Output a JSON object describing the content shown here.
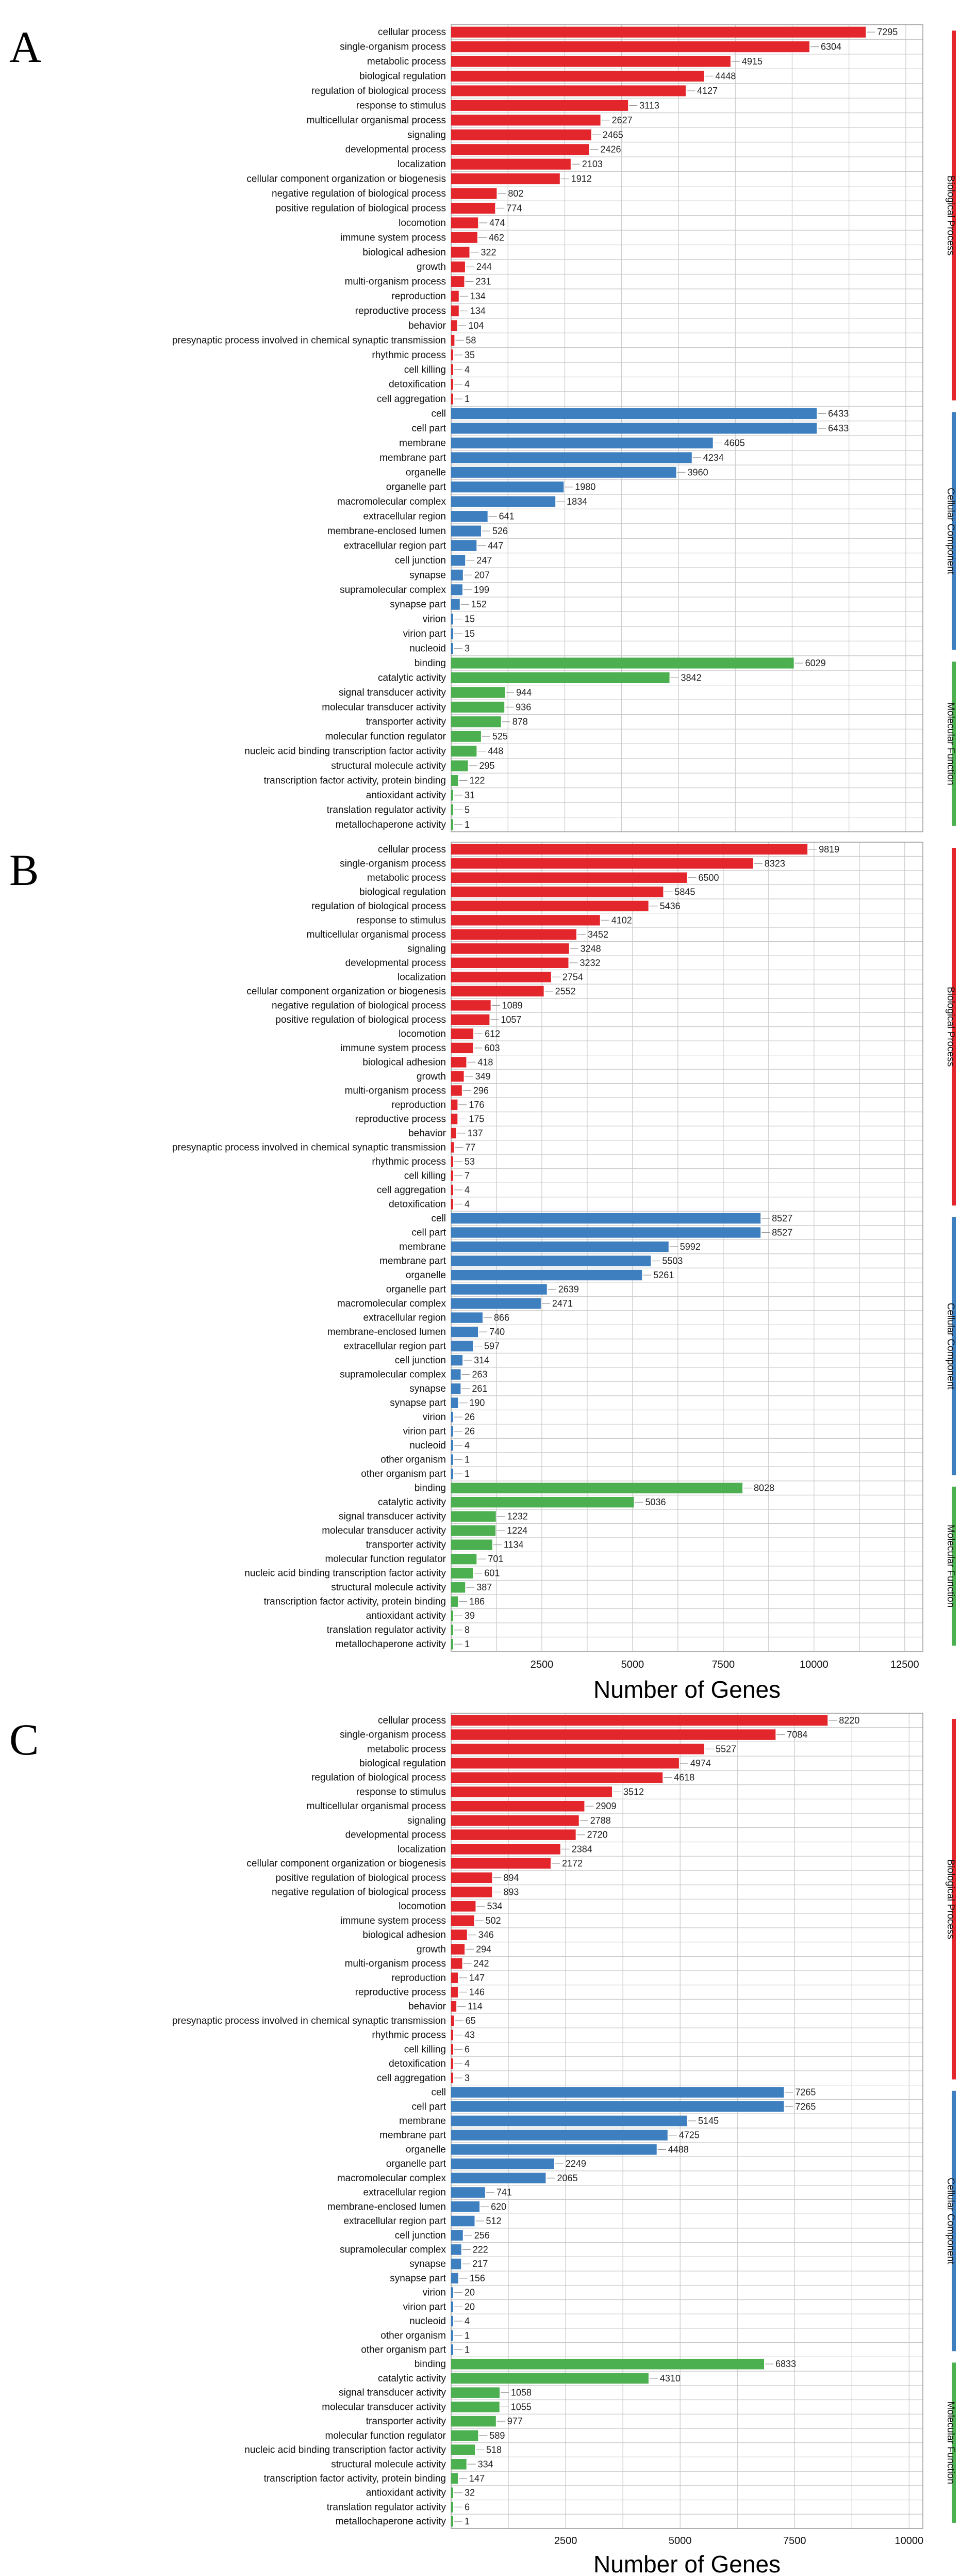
{
  "colors": {
    "Biological Process": "#e3262c",
    "Cellular Component": "#3e7fbf",
    "Molecular Function": "#4caf50"
  },
  "chart_data": [
    {
      "type": "bar",
      "panel": "A",
      "orientation": "horizontal",
      "xlabel": "",
      "xticks": [],
      "xlim": [
        0,
        8300
      ],
      "legend": [
        "Biological Process",
        "Cellular Component",
        "Molecular Function"
      ],
      "legend_position": "right",
      "grid": true,
      "categories": [
        "cellular process",
        "single-organism process",
        "metabolic process",
        "biological regulation",
        "regulation of biological process",
        "response to stimulus",
        "multicellular organismal process",
        "signaling",
        "developmental process",
        "localization",
        "cellular component organization or biogenesis",
        "negative regulation of biological process",
        "positive regulation of biological process",
        "locomotion",
        "immune system process",
        "biological adhesion",
        "growth",
        "multi-organism process",
        "reproduction",
        "reproductive process",
        "behavior",
        "presynaptic process involved in chemical synaptic transmission",
        "rhythmic process",
        "cell killing",
        "detoxification",
        "cell aggregation",
        "cell",
        "cell part",
        "membrane",
        "membrane part",
        "organelle",
        "organelle part",
        "macromolecular complex",
        "extracellular region",
        "membrane-enclosed lumen",
        "extracellular region part",
        "cell junction",
        "synapse",
        "supramolecular complex",
        "synapse part",
        "virion",
        "virion part",
        "nucleoid",
        "binding",
        "catalytic activity",
        "signal transducer activity",
        "molecular transducer activity",
        "transporter activity",
        "molecular function regulator",
        "nucleic acid binding transcription factor activity",
        "structural molecule activity",
        "transcription factor activity, protein binding",
        "antioxidant activity",
        "translation regulator activity",
        "metallochaperone activity"
      ],
      "values": [
        7295,
        6304,
        4915,
        4448,
        4127,
        3113,
        2627,
        2465,
        2426,
        2103,
        1912,
        802,
        774,
        474,
        462,
        322,
        244,
        231,
        134,
        134,
        104,
        58,
        35,
        4,
        4,
        1,
        6433,
        6433,
        4605,
        4234,
        3960,
        1980,
        1834,
        641,
        526,
        447,
        247,
        207,
        199,
        152,
        15,
        15,
        3,
        6029,
        3842,
        944,
        936,
        878,
        525,
        448,
        295,
        122,
        31,
        5,
        1
      ],
      "groups": [
        "Biological Process",
        "Biological Process",
        "Biological Process",
        "Biological Process",
        "Biological Process",
        "Biological Process",
        "Biological Process",
        "Biological Process",
        "Biological Process",
        "Biological Process",
        "Biological Process",
        "Biological Process",
        "Biological Process",
        "Biological Process",
        "Biological Process",
        "Biological Process",
        "Biological Process",
        "Biological Process",
        "Biological Process",
        "Biological Process",
        "Biological Process",
        "Biological Process",
        "Biological Process",
        "Biological Process",
        "Biological Process",
        "Biological Process",
        "Cellular Component",
        "Cellular Component",
        "Cellular Component",
        "Cellular Component",
        "Cellular Component",
        "Cellular Component",
        "Cellular Component",
        "Cellular Component",
        "Cellular Component",
        "Cellular Component",
        "Cellular Component",
        "Cellular Component",
        "Cellular Component",
        "Cellular Component",
        "Cellular Component",
        "Cellular Component",
        "Cellular Component",
        "Molecular Function",
        "Molecular Function",
        "Molecular Function",
        "Molecular Function",
        "Molecular Function",
        "Molecular Function",
        "Molecular Function",
        "Molecular Function",
        "Molecular Function",
        "Molecular Function",
        "Molecular Function",
        "Molecular Function"
      ]
    },
    {
      "type": "bar",
      "panel": "B",
      "orientation": "horizontal",
      "xlabel": "Number of Genes",
      "xticks": [
        2500,
        5000,
        7500,
        10000,
        12500
      ],
      "xlim": [
        0,
        13000
      ],
      "legend": [
        "Biological Process",
        "Cellular Component",
        "Molecular Function"
      ],
      "legend_position": "right",
      "grid": true,
      "categories": [
        "cellular process",
        "single-organism process",
        "metabolic process",
        "biological regulation",
        "regulation of biological process",
        "response to stimulus",
        "multicellular organismal process",
        "signaling",
        "developmental process",
        "localization",
        "cellular component organization or biogenesis",
        "negative regulation of biological process",
        "positive regulation of biological process",
        "locomotion",
        "immune system process",
        "biological adhesion",
        "growth",
        "multi-organism process",
        "reproduction",
        "reproductive process",
        "behavior",
        "presynaptic process involved in chemical synaptic transmission",
        "rhythmic process",
        "cell killing",
        "cell aggregation",
        "detoxification",
        "cell",
        "cell part",
        "membrane",
        "membrane part",
        "organelle",
        "organelle part",
        "macromolecular complex",
        "extracellular region",
        "membrane-enclosed lumen",
        "extracellular region part",
        "cell junction",
        "supramolecular complex",
        "synapse",
        "synapse part",
        "virion",
        "virion part",
        "nucleoid",
        "other organism",
        "other organism part",
        "binding",
        "catalytic activity",
        "signal transducer activity",
        "molecular transducer activity",
        "transporter activity",
        "molecular function regulator",
        "nucleic acid binding transcription factor activity",
        "structural molecule activity",
        "transcription factor activity, protein binding",
        "antioxidant activity",
        "translation regulator activity",
        "metallochaperone activity"
      ],
      "values": [
        9819,
        8323,
        6500,
        5845,
        5436,
        4102,
        3452,
        3248,
        3232,
        2754,
        2552,
        1089,
        1057,
        612,
        603,
        418,
        349,
        296,
        176,
        175,
        137,
        77,
        53,
        7,
        4,
        4,
        8527,
        8527,
        5992,
        5503,
        5261,
        2639,
        2471,
        866,
        740,
        597,
        314,
        263,
        261,
        190,
        26,
        26,
        4,
        1,
        1,
        8028,
        5036,
        1232,
        1224,
        1134,
        701,
        601,
        387,
        186,
        39,
        8,
        1
      ],
      "groups": [
        "Biological Process",
        "Biological Process",
        "Biological Process",
        "Biological Process",
        "Biological Process",
        "Biological Process",
        "Biological Process",
        "Biological Process",
        "Biological Process",
        "Biological Process",
        "Biological Process",
        "Biological Process",
        "Biological Process",
        "Biological Process",
        "Biological Process",
        "Biological Process",
        "Biological Process",
        "Biological Process",
        "Biological Process",
        "Biological Process",
        "Biological Process",
        "Biological Process",
        "Biological Process",
        "Biological Process",
        "Biological Process",
        "Biological Process",
        "Cellular Component",
        "Cellular Component",
        "Cellular Component",
        "Cellular Component",
        "Cellular Component",
        "Cellular Component",
        "Cellular Component",
        "Cellular Component",
        "Cellular Component",
        "Cellular Component",
        "Cellular Component",
        "Cellular Component",
        "Cellular Component",
        "Cellular Component",
        "Cellular Component",
        "Cellular Component",
        "Cellular Component",
        "Cellular Component",
        "Cellular Component",
        "Molecular Function",
        "Molecular Function",
        "Molecular Function",
        "Molecular Function",
        "Molecular Function",
        "Molecular Function",
        "Molecular Function",
        "Molecular Function",
        "Molecular Function",
        "Molecular Function",
        "Molecular Function",
        "Molecular Function"
      ]
    },
    {
      "type": "bar",
      "panel": "C",
      "orientation": "horizontal",
      "xlabel": "Number of Genes",
      "xticks": [
        2500,
        5000,
        7500,
        10000
      ],
      "xlim": [
        0,
        10300
      ],
      "legend": [
        "Biological Process",
        "Cellular Component",
        "Molecular Function"
      ],
      "legend_position": "right",
      "grid": true,
      "categories": [
        "cellular process",
        "single-organism process",
        "metabolic process",
        "biological regulation",
        "regulation of biological process",
        "response to stimulus",
        "multicellular organismal process",
        "signaling",
        "developmental process",
        "localization",
        "cellular component organization or biogenesis",
        "positive regulation of biological process",
        "negative regulation of biological process",
        "locomotion",
        "immune system process",
        "biological adhesion",
        "growth",
        "multi-organism process",
        "reproduction",
        "reproductive process",
        "behavior",
        "presynaptic process involved in chemical synaptic transmission",
        "rhythmic process",
        "cell killing",
        "detoxification",
        "cell aggregation",
        "cell",
        "cell part",
        "membrane",
        "membrane part",
        "organelle",
        "organelle part",
        "macromolecular complex",
        "extracellular region",
        "membrane-enclosed lumen",
        "extracellular region part",
        "cell junction",
        "supramolecular complex",
        "synapse",
        "synapse part",
        "virion",
        "virion part",
        "nucleoid",
        "other organism",
        "other organism part",
        "binding",
        "catalytic activity",
        "signal transducer activity",
        "molecular transducer activity",
        "transporter activity",
        "molecular function regulator",
        "nucleic acid binding transcription factor activity",
        "structural molecule activity",
        "transcription factor activity, protein binding",
        "antioxidant activity",
        "translation regulator activity",
        "metallochaperone activity"
      ],
      "values": [
        8220,
        7084,
        5527,
        4974,
        4618,
        3512,
        2909,
        2788,
        2720,
        2384,
        2172,
        894,
        893,
        534,
        502,
        346,
        294,
        242,
        147,
        146,
        114,
        65,
        43,
        6,
        4,
        3,
        7265,
        7265,
        5145,
        4725,
        4488,
        2249,
        2065,
        741,
        620,
        512,
        256,
        222,
        217,
        156,
        20,
        20,
        4,
        1,
        1,
        6833,
        4310,
        1058,
        1055,
        977,
        589,
        518,
        334,
        147,
        32,
        6,
        1
      ],
      "groups": [
        "Biological Process",
        "Biological Process",
        "Biological Process",
        "Biological Process",
        "Biological Process",
        "Biological Process",
        "Biological Process",
        "Biological Process",
        "Biological Process",
        "Biological Process",
        "Biological Process",
        "Biological Process",
        "Biological Process",
        "Biological Process",
        "Biological Process",
        "Biological Process",
        "Biological Process",
        "Biological Process",
        "Biological Process",
        "Biological Process",
        "Biological Process",
        "Biological Process",
        "Biological Process",
        "Biological Process",
        "Biological Process",
        "Biological Process",
        "Cellular Component",
        "Cellular Component",
        "Cellular Component",
        "Cellular Component",
        "Cellular Component",
        "Cellular Component",
        "Cellular Component",
        "Cellular Component",
        "Cellular Component",
        "Cellular Component",
        "Cellular Component",
        "Cellular Component",
        "Cellular Component",
        "Cellular Component",
        "Cellular Component",
        "Cellular Component",
        "Cellular Component",
        "Cellular Component",
        "Cellular Component",
        "Molecular Function",
        "Molecular Function",
        "Molecular Function",
        "Molecular Function",
        "Molecular Function",
        "Molecular Function",
        "Molecular Function",
        "Molecular Function",
        "Molecular Function",
        "Molecular Function",
        "Molecular Function",
        "Molecular Function"
      ]
    }
  ]
}
